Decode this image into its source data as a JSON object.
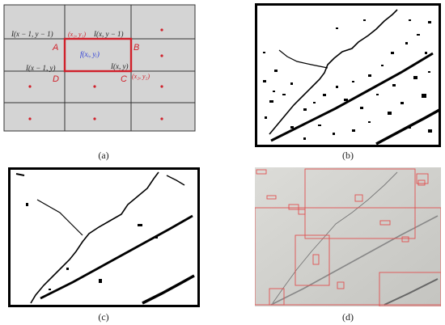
{
  "captions": {
    "a": "(a)",
    "b": "(b)",
    "c": "(c)",
    "d": "(d)"
  },
  "panel_a": {
    "labels": {
      "tl": "I(x − 1, y − 1)",
      "tr": "I(x, y − 1)",
      "bl": "I(x − 1, y)",
      "br": "I(x, y)",
      "p1": "(x₁, y₁)",
      "p2": "(x₂, y₂)",
      "f": "f(xᵢ, yᵢ)",
      "A": "A",
      "B": "B",
      "C": "C",
      "D": "D"
    },
    "colors": {
      "cell": "#d4d4d4",
      "line": "#333333",
      "accent": "#d0202a",
      "blue": "#2a3ad8"
    }
  }
}
